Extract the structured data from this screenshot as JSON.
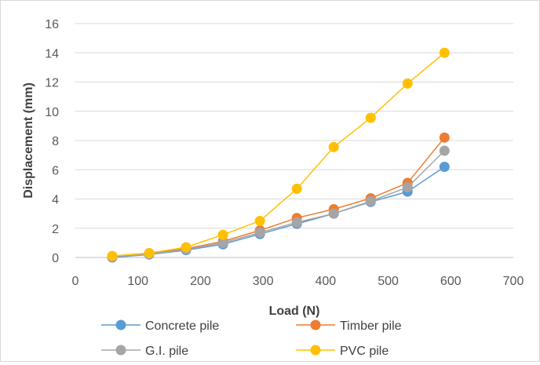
{
  "chart_data": {
    "type": "line",
    "xlabel": "Load (N)",
    "ylabel": "Displacement (mm)",
    "xlim": [
      0,
      700
    ],
    "ylim": [
      0,
      16
    ],
    "xticks": [
      0,
      100,
      200,
      300,
      400,
      500,
      600,
      700
    ],
    "yticks": [
      0,
      2,
      4,
      6,
      8,
      10,
      12,
      14,
      16
    ],
    "grid": "horizontal",
    "legend_position": "bottom",
    "x": [
      59,
      118,
      177,
      236,
      295,
      354,
      413,
      472,
      531,
      590
    ],
    "series": [
      {
        "name": "Concrete pile",
        "color": "#5B9BD5",
        "values": [
          0.0,
          0.2,
          0.5,
          0.9,
          1.6,
          2.3,
          3.0,
          3.8,
          4.5,
          6.2
        ]
      },
      {
        "name": "Timber pile",
        "color": "#ED7D31",
        "values": [
          0.05,
          0.25,
          0.6,
          1.1,
          1.85,
          2.7,
          3.3,
          4.05,
          5.1,
          8.2
        ]
      },
      {
        "name": "G.I. pile",
        "color": "#A5A5A5",
        "values": [
          0.05,
          0.22,
          0.55,
          1.0,
          1.7,
          2.4,
          3.0,
          3.85,
          4.8,
          7.3
        ]
      },
      {
        "name": "PVC pile",
        "color": "#FFC000",
        "values": [
          0.1,
          0.3,
          0.7,
          1.55,
          2.5,
          4.7,
          7.55,
          9.55,
          11.9,
          14.0
        ]
      }
    ]
  }
}
